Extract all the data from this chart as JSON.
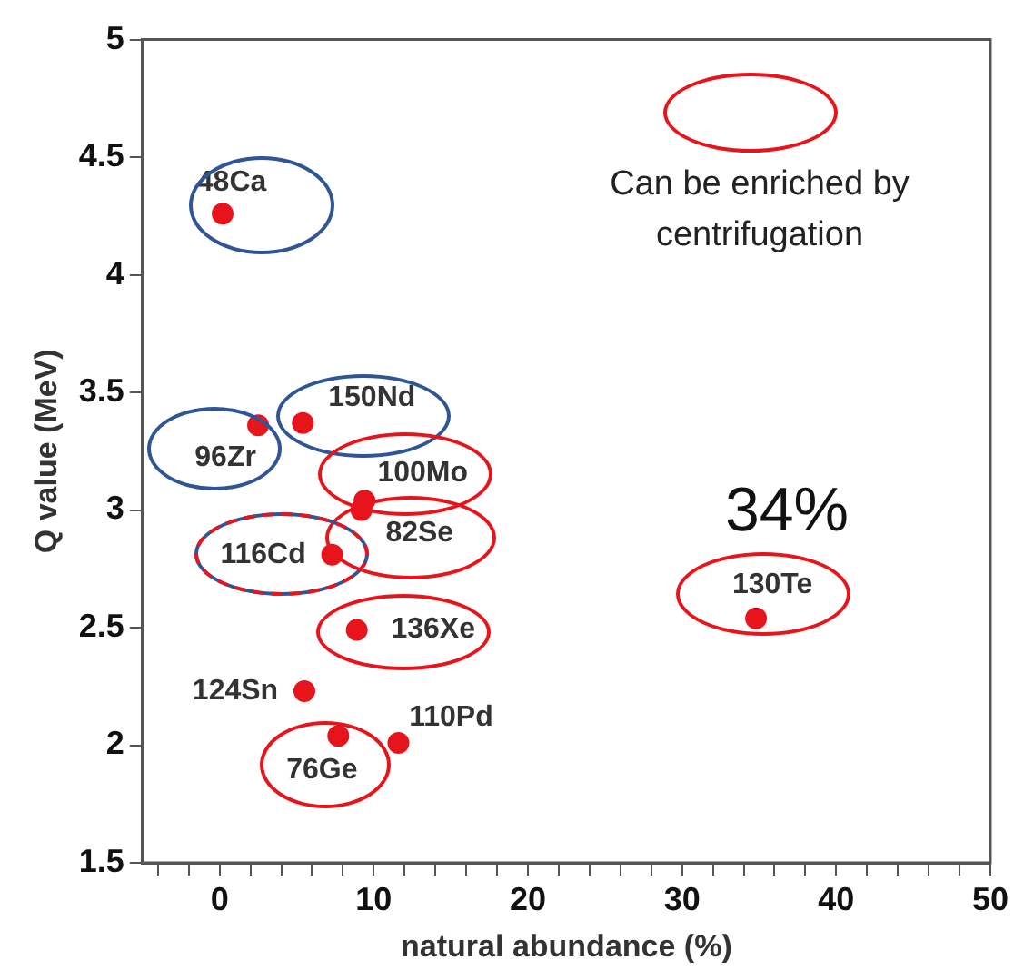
{
  "chart_data": {
    "type": "scatter",
    "xlabel": "natural abundance (%)",
    "ylabel": "Q value (MeV)",
    "x": [
      0.2,
      2.5,
      5.4,
      9.4,
      9.2,
      7.3,
      8.9,
      5.5,
      7.7,
      11.6,
      34.8
    ],
    "series": [
      {
        "color": "#e8141c",
        "values": [
          4.26,
          3.36,
          3.37,
          3.04,
          3.0,
          2.81,
          2.49,
          2.23,
          2.04,
          2.01,
          2.54
        ]
      }
    ],
    "marker": "circle",
    "grid": false,
    "legend": false,
    "xlim": [
      -5,
      50
    ],
    "ylim": [
      1.5,
      5
    ],
    "xticks": [
      {
        "value": -4,
        "label": null
      },
      {
        "value": -2,
        "label": null
      },
      0,
      {
        "value": 2,
        "label": null
      },
      {
        "value": 4,
        "label": null
      },
      {
        "value": 6,
        "label": null
      },
      {
        "value": 8,
        "label": null
      },
      10,
      {
        "value": 12,
        "label": null
      },
      {
        "value": 14,
        "label": null
      },
      {
        "value": 16,
        "label": null
      },
      {
        "value": 18,
        "label": null
      },
      20,
      {
        "value": 22,
        "label": null
      },
      {
        "value": 24,
        "label": null
      },
      {
        "value": 26,
        "label": null
      },
      {
        "value": 28,
        "label": null
      },
      30,
      {
        "value": 32,
        "label": null
      },
      {
        "value": 34,
        "label": null
      },
      {
        "value": 36,
        "label": null
      },
      {
        "value": 38,
        "label": null
      },
      40,
      {
        "value": 42,
        "label": null
      },
      {
        "value": 44,
        "label": null
      },
      {
        "value": 46,
        "label": null
      },
      {
        "value": 48,
        "label": null
      },
      50
    ],
    "yticks": [
      1.5,
      2,
      2.5,
      3,
      3.5,
      4,
      4.5,
      5
    ],
    "annotations": [
      {
        "text": "48Ca",
        "x": 0.2,
        "y": 4.26
      },
      {
        "text": "96Zr",
        "x": 2.5,
        "y": 3.36
      },
      {
        "text": "150Nd",
        "x": 5.4,
        "y": 3.37
      },
      {
        "text": "100Mo",
        "x": 9.4,
        "y": 3.04
      },
      {
        "text": "82Se",
        "x": 9.2,
        "y": 3.0
      },
      {
        "text": "116Cd",
        "x": 7.3,
        "y": 2.81
      },
      {
        "text": "136Xe",
        "x": 8.9,
        "y": 2.49
      },
      {
        "text": "124Sn",
        "x": 5.5,
        "y": 2.23
      },
      {
        "text": "76Ge",
        "x": 7.7,
        "y": 2.04
      },
      {
        "text": "110Pd",
        "x": 11.6,
        "y": 2.01
      },
      {
        "text": "130Te",
        "x": 34.8,
        "y": 2.54
      },
      "Can be enriched by centrifugation",
      "34%"
    ]
  }
}
